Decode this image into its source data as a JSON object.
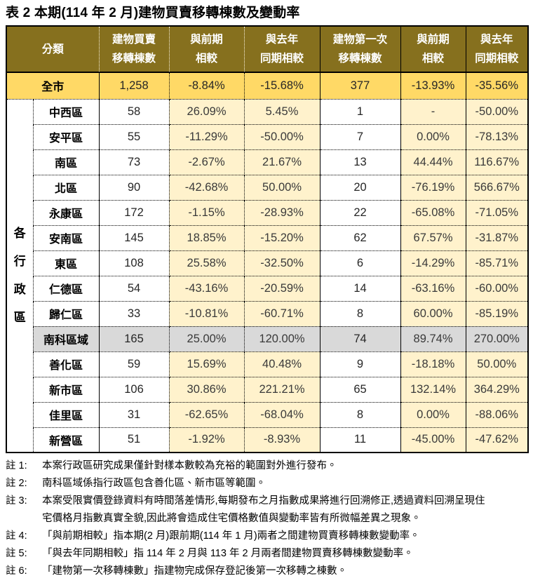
{
  "title": "表 2 本期(114 年 2 月)建物買賣移轉棟數及變動率",
  "table": {
    "headers": {
      "category": "分類",
      "sale": "建物買賣\n移轉棟數",
      "sale_prev": "與前期\n相較",
      "sale_yoy": "與去年\n同期相較",
      "first": "建物第一次\n移轉棟數",
      "first_prev": "與前期\n相較",
      "first_yoy": "與去年\n同期相較"
    },
    "group_label": "各行政區",
    "city": {
      "name": "全市",
      "sale": "1,258",
      "sale_prev": "-8.84%",
      "sale_yoy": "-15.68%",
      "first": "377",
      "first_prev": "-13.93%",
      "first_yoy": "-35.56%"
    },
    "districts": [
      {
        "name": "中西區",
        "sale": "58",
        "sale_prev": "26.09%",
        "sale_yoy": "5.45%",
        "first": "1",
        "first_prev": "-",
        "first_yoy": "-50.00%",
        "highlight": false
      },
      {
        "name": "安平區",
        "sale": "55",
        "sale_prev": "-11.29%",
        "sale_yoy": "-50.00%",
        "first": "7",
        "first_prev": "0.00%",
        "first_yoy": "-78.13%",
        "highlight": false
      },
      {
        "name": "南區",
        "sale": "73",
        "sale_prev": "-2.67%",
        "sale_yoy": "21.67%",
        "first": "13",
        "first_prev": "44.44%",
        "first_yoy": "116.67%",
        "highlight": false
      },
      {
        "name": "北區",
        "sale": "90",
        "sale_prev": "-42.68%",
        "sale_yoy": "50.00%",
        "first": "20",
        "first_prev": "-76.19%",
        "first_yoy": "566.67%",
        "highlight": false
      },
      {
        "name": "永康區",
        "sale": "172",
        "sale_prev": "-1.15%",
        "sale_yoy": "-28.93%",
        "first": "22",
        "first_prev": "-65.08%",
        "first_yoy": "-71.05%",
        "highlight": false
      },
      {
        "name": "安南區",
        "sale": "145",
        "sale_prev": "18.85%",
        "sale_yoy": "-15.20%",
        "first": "62",
        "first_prev": "67.57%",
        "first_yoy": "-31.87%",
        "highlight": false
      },
      {
        "name": "東區",
        "sale": "108",
        "sale_prev": "25.58%",
        "sale_yoy": "-32.50%",
        "first": "6",
        "first_prev": "-14.29%",
        "first_yoy": "-85.71%",
        "highlight": false
      },
      {
        "name": "仁德區",
        "sale": "54",
        "sale_prev": "-43.16%",
        "sale_yoy": "-20.59%",
        "first": "14",
        "first_prev": "-63.16%",
        "first_yoy": "-60.00%",
        "highlight": false
      },
      {
        "name": "歸仁區",
        "sale": "33",
        "sale_prev": "-10.81%",
        "sale_yoy": "-60.71%",
        "first": "8",
        "first_prev": "60.00%",
        "first_yoy": "-85.19%",
        "highlight": false
      },
      {
        "name": "南科區域",
        "sale": "165",
        "sale_prev": "25.00%",
        "sale_yoy": "120.00%",
        "first": "74",
        "first_prev": "89.74%",
        "first_yoy": "270.00%",
        "highlight": true
      },
      {
        "name": "善化區",
        "sale": "59",
        "sale_prev": "15.69%",
        "sale_yoy": "40.48%",
        "first": "9",
        "first_prev": "-18.18%",
        "first_yoy": "50.00%",
        "highlight": false
      },
      {
        "name": "新市區",
        "sale": "106",
        "sale_prev": "30.86%",
        "sale_yoy": "221.21%",
        "first": "65",
        "first_prev": "132.14%",
        "first_yoy": "364.29%",
        "highlight": false
      },
      {
        "name": "佳里區",
        "sale": "31",
        "sale_prev": "-62.65%",
        "sale_yoy": "-68.04%",
        "first": "8",
        "first_prev": "0.00%",
        "first_yoy": "-88.06%",
        "highlight": false
      },
      {
        "name": "新營區",
        "sale": "51",
        "sale_prev": "-1.92%",
        "sale_yoy": "-8.93%",
        "first": "11",
        "first_prev": "-45.00%",
        "first_yoy": "-47.62%",
        "highlight": false
      }
    ]
  },
  "notes": [
    {
      "label": "註 1:",
      "text": "本案行政區研究成果僅針對樣本數較為充裕的範圍對外進行發布。"
    },
    {
      "label": "註 2:",
      "text": "南科區域係指行政區包含善化區、新市區等範圍。"
    },
    {
      "label": "註 3:",
      "text": "本案受限實價登錄資料有時間落差情形,每期發布之月指數成果將進行回溯修正,透過資料回溯呈現住\n宅價格月指數真實全貌,因此將會造成住宅價格數值與變動率皆有所微幅差異之現象。"
    },
    {
      "label": "註 4:",
      "text": "「與前期相較」指本期(2 月)跟前期(114 年 1 月)兩者之間建物買賣移轉棟數變動率。"
    },
    {
      "label": "註 5:",
      "text": "「與去年同期相較」指 114 年 2 月與 113 年 2 月兩者間建物買賣移轉棟數變動率。"
    },
    {
      "label": "註 6:",
      "text": "「建物第一次移轉棟數」指建物完成保存登記後第一次移轉之棟數。"
    }
  ],
  "colors": {
    "header_bg": "#86701e",
    "header_text": "#ffffff",
    "city_row_bg": "#ffd966",
    "pct_cell_bg": "#fff2cc",
    "highlight_row_bg": "#d9d9d9",
    "border": "#000000"
  }
}
